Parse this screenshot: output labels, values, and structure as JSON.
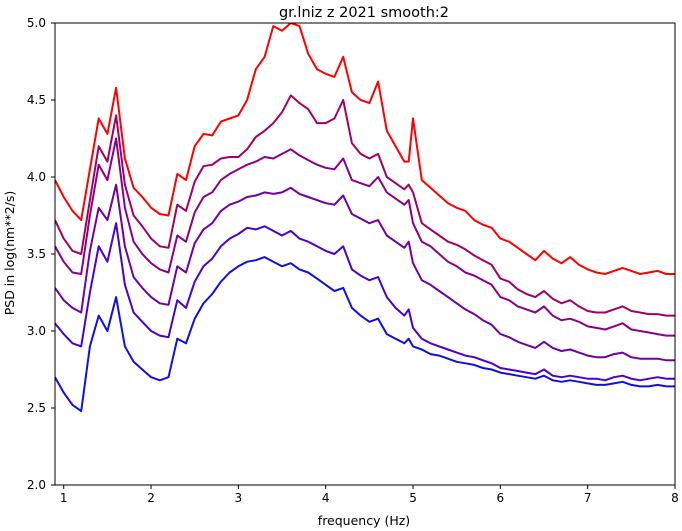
{
  "chart_data": {
    "type": "line",
    "title": "gr.lniz z 2021 smooth:2",
    "xlabel": "frequency (Hz)",
    "ylabel": "PSD in log(nm**2/s)",
    "xlim": [
      0.9,
      8.0
    ],
    "ylim": [
      2.0,
      5.0
    ],
    "xticks": [
      1,
      2,
      3,
      4,
      5,
      6,
      7,
      8
    ],
    "xtick_labels": [
      "1",
      "2",
      "3",
      "4",
      "5",
      "6",
      "7",
      "8"
    ],
    "yticks": [
      2.0,
      2.5,
      3.0,
      3.5,
      4.0,
      4.5,
      5.0
    ],
    "ytick_labels": [
      "2.0",
      "2.5",
      "3.0",
      "3.5",
      "4.0",
      "4.5",
      "5.0"
    ],
    "grid": false,
    "legend": false,
    "x": [
      0.9,
      1.0,
      1.1,
      1.2,
      1.3,
      1.4,
      1.5,
      1.6,
      1.7,
      1.8,
      1.9,
      2.0,
      2.1,
      2.2,
      2.3,
      2.4,
      2.5,
      2.6,
      2.7,
      2.8,
      2.9,
      3.0,
      3.1,
      3.2,
      3.3,
      3.4,
      3.5,
      3.6,
      3.7,
      3.8,
      3.9,
      4.0,
      4.1,
      4.2,
      4.3,
      4.4,
      4.5,
      4.6,
      4.7,
      4.8,
      4.9,
      4.95,
      5.0,
      5.1,
      5.2,
      5.3,
      5.4,
      5.5,
      5.6,
      5.7,
      5.8,
      5.9,
      6.0,
      6.1,
      6.2,
      6.3,
      6.4,
      6.5,
      6.6,
      6.7,
      6.8,
      6.9,
      7.0,
      7.1,
      7.2,
      7.3,
      7.4,
      7.5,
      7.6,
      7.7,
      7.8,
      7.9,
      8.0
    ],
    "series": [
      {
        "color": "#ff0000",
        "values": [
          3.98,
          3.87,
          3.78,
          3.72,
          4.05,
          4.38,
          4.28,
          4.58,
          4.12,
          3.93,
          3.87,
          3.8,
          3.76,
          3.75,
          4.02,
          3.98,
          4.2,
          4.28,
          4.27,
          4.36,
          4.38,
          4.4,
          4.5,
          4.7,
          4.78,
          4.98,
          4.95,
          5.0,
          4.98,
          4.8,
          4.7,
          4.67,
          4.65,
          4.78,
          4.55,
          4.5,
          4.48,
          4.62,
          4.3,
          4.2,
          4.1,
          4.1,
          4.38,
          3.98,
          3.93,
          3.88,
          3.83,
          3.8,
          3.78,
          3.72,
          3.69,
          3.67,
          3.6,
          3.58,
          3.54,
          3.5,
          3.46,
          3.52,
          3.47,
          3.44,
          3.48,
          3.43,
          3.4,
          3.38,
          3.37,
          3.39,
          3.41,
          3.39,
          3.37,
          3.38,
          3.39,
          3.37,
          3.37
        ]
      },
      {
        "color": "#a0006a",
        "values": [
          3.72,
          3.6,
          3.52,
          3.5,
          3.85,
          4.2,
          4.1,
          4.4,
          3.95,
          3.75,
          3.68,
          3.6,
          3.55,
          3.54,
          3.82,
          3.78,
          3.97,
          4.07,
          4.08,
          4.12,
          4.13,
          4.13,
          4.18,
          4.26,
          4.3,
          4.35,
          4.42,
          4.53,
          4.48,
          4.44,
          4.35,
          4.35,
          4.38,
          4.5,
          4.22,
          4.15,
          4.12,
          4.15,
          4.0,
          3.96,
          3.92,
          3.95,
          3.9,
          3.7,
          3.66,
          3.62,
          3.58,
          3.56,
          3.53,
          3.49,
          3.46,
          3.43,
          3.34,
          3.32,
          3.27,
          3.24,
          3.22,
          3.26,
          3.21,
          3.18,
          3.2,
          3.16,
          3.13,
          3.12,
          3.12,
          3.14,
          3.16,
          3.13,
          3.12,
          3.11,
          3.11,
          3.1,
          3.1
        ]
      },
      {
        "color": "#8a008a",
        "values": [
          3.55,
          3.45,
          3.38,
          3.37,
          3.75,
          4.08,
          3.98,
          4.25,
          3.8,
          3.58,
          3.5,
          3.44,
          3.4,
          3.38,
          3.62,
          3.58,
          3.77,
          3.87,
          3.9,
          3.98,
          4.02,
          4.05,
          4.08,
          4.1,
          4.13,
          4.12,
          4.15,
          4.18,
          4.14,
          4.11,
          4.08,
          4.06,
          4.05,
          4.12,
          3.98,
          3.96,
          3.94,
          4.0,
          3.9,
          3.86,
          3.82,
          3.85,
          3.7,
          3.58,
          3.55,
          3.5,
          3.45,
          3.42,
          3.38,
          3.36,
          3.33,
          3.3,
          3.22,
          3.2,
          3.16,
          3.14,
          3.12,
          3.16,
          3.1,
          3.07,
          3.08,
          3.06,
          3.03,
          3.02,
          3.01,
          3.03,
          3.05,
          3.01,
          3.0,
          2.99,
          2.98,
          2.97,
          2.97
        ]
      },
      {
        "color": "#7000a0",
        "values": [
          3.28,
          3.2,
          3.15,
          3.12,
          3.52,
          3.8,
          3.72,
          3.95,
          3.55,
          3.35,
          3.28,
          3.22,
          3.18,
          3.17,
          3.42,
          3.38,
          3.57,
          3.66,
          3.7,
          3.78,
          3.82,
          3.84,
          3.87,
          3.88,
          3.9,
          3.89,
          3.9,
          3.93,
          3.89,
          3.87,
          3.85,
          3.83,
          3.82,
          3.88,
          3.76,
          3.73,
          3.7,
          3.72,
          3.62,
          3.58,
          3.54,
          3.58,
          3.44,
          3.33,
          3.3,
          3.26,
          3.22,
          3.18,
          3.14,
          3.11,
          3.07,
          3.04,
          2.98,
          2.96,
          2.93,
          2.91,
          2.89,
          2.93,
          2.89,
          2.87,
          2.88,
          2.86,
          2.84,
          2.83,
          2.83,
          2.85,
          2.86,
          2.83,
          2.82,
          2.82,
          2.82,
          2.81,
          2.81
        ]
      },
      {
        "color": "#4a00d0",
        "values": [
          3.05,
          2.98,
          2.92,
          2.9,
          3.25,
          3.55,
          3.45,
          3.7,
          3.3,
          3.12,
          3.06,
          3.0,
          2.97,
          2.96,
          3.2,
          3.15,
          3.32,
          3.42,
          3.47,
          3.55,
          3.6,
          3.63,
          3.67,
          3.66,
          3.68,
          3.65,
          3.62,
          3.65,
          3.6,
          3.58,
          3.55,
          3.52,
          3.5,
          3.55,
          3.4,
          3.36,
          3.33,
          3.35,
          3.22,
          3.15,
          3.1,
          3.14,
          3.02,
          2.95,
          2.92,
          2.9,
          2.88,
          2.86,
          2.84,
          2.83,
          2.81,
          2.79,
          2.76,
          2.75,
          2.74,
          2.73,
          2.72,
          2.75,
          2.71,
          2.7,
          2.71,
          2.7,
          2.69,
          2.69,
          2.68,
          2.7,
          2.71,
          2.69,
          2.68,
          2.69,
          2.7,
          2.69,
          2.69
        ]
      },
      {
        "color": "#1010e0",
        "values": [
          2.7,
          2.6,
          2.52,
          2.48,
          2.9,
          3.1,
          3.0,
          3.22,
          2.9,
          2.8,
          2.75,
          2.7,
          2.68,
          2.7,
          2.95,
          2.92,
          3.08,
          3.18,
          3.24,
          3.32,
          3.38,
          3.42,
          3.45,
          3.46,
          3.48,
          3.45,
          3.42,
          3.44,
          3.4,
          3.38,
          3.34,
          3.3,
          3.26,
          3.28,
          3.15,
          3.1,
          3.06,
          3.08,
          2.98,
          2.95,
          2.92,
          2.95,
          2.9,
          2.88,
          2.85,
          2.84,
          2.82,
          2.8,
          2.79,
          2.78,
          2.76,
          2.75,
          2.73,
          2.72,
          2.71,
          2.7,
          2.69,
          2.71,
          2.68,
          2.67,
          2.68,
          2.67,
          2.66,
          2.65,
          2.65,
          2.66,
          2.67,
          2.65,
          2.64,
          2.64,
          2.65,
          2.64,
          2.64
        ]
      }
    ]
  }
}
